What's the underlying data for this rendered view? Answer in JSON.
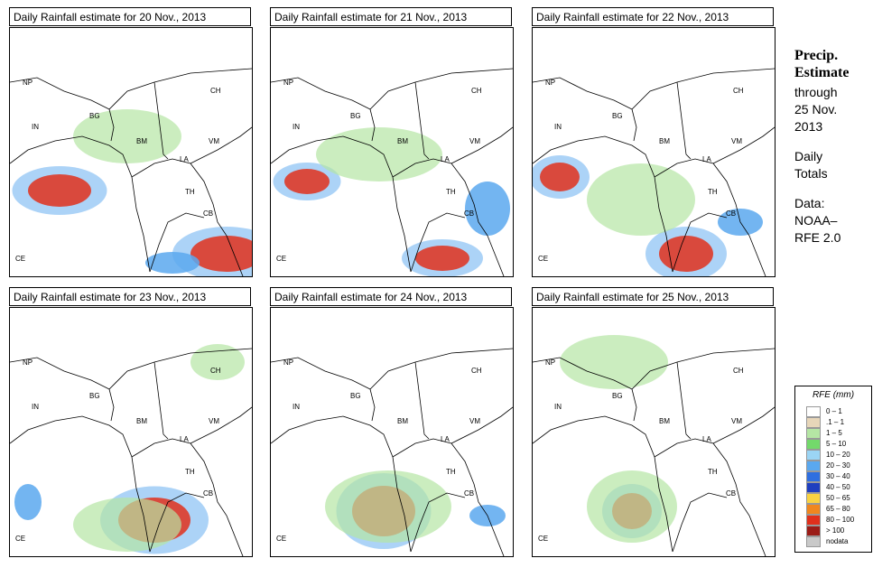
{
  "panels": [
    {
      "title": "Daily Rainfall estimate for  20 Nov., 2013",
      "rain": [
        {
          "cx": 55,
          "cy": 180,
          "rx": 35,
          "ry": 18,
          "level": "heavy"
        },
        {
          "cx": 240,
          "cy": 250,
          "rx": 40,
          "ry": 20,
          "level": "heavy"
        },
        {
          "cx": 180,
          "cy": 260,
          "rx": 30,
          "ry": 12,
          "level": "mid"
        },
        {
          "cx": 130,
          "cy": 120,
          "rx": 60,
          "ry": 30,
          "level": "light"
        }
      ]
    },
    {
      "title": "Daily Rainfall estimate for  21 Nov., 2013",
      "rain": [
        {
          "cx": 40,
          "cy": 170,
          "rx": 25,
          "ry": 14,
          "level": "heavy"
        },
        {
          "cx": 190,
          "cy": 255,
          "rx": 30,
          "ry": 14,
          "level": "heavy"
        },
        {
          "cx": 240,
          "cy": 200,
          "rx": 25,
          "ry": 30,
          "level": "mid"
        },
        {
          "cx": 120,
          "cy": 140,
          "rx": 70,
          "ry": 30,
          "level": "light"
        }
      ]
    },
    {
      "title": "Daily Rainfall estimate for  22 Nov., 2013",
      "rain": [
        {
          "cx": 30,
          "cy": 165,
          "rx": 22,
          "ry": 16,
          "level": "heavy"
        },
        {
          "cx": 170,
          "cy": 250,
          "rx": 30,
          "ry": 20,
          "level": "heavy"
        },
        {
          "cx": 230,
          "cy": 215,
          "rx": 25,
          "ry": 15,
          "level": "mid"
        },
        {
          "cx": 120,
          "cy": 190,
          "rx": 60,
          "ry": 40,
          "level": "light"
        }
      ]
    },
    {
      "title": "Daily Rainfall estimate for  23 Nov., 2013",
      "rain": [
        {
          "cx": 160,
          "cy": 235,
          "rx": 40,
          "ry": 25,
          "level": "heavy"
        },
        {
          "cx": 20,
          "cy": 215,
          "rx": 15,
          "ry": 20,
          "level": "mid"
        },
        {
          "cx": 130,
          "cy": 240,
          "rx": 60,
          "ry": 30,
          "level": "light"
        },
        {
          "cx": 230,
          "cy": 60,
          "rx": 30,
          "ry": 20,
          "level": "light"
        }
      ]
    },
    {
      "title": "Daily Rainfall estimate for  24 Nov., 2013",
      "rain": [
        {
          "cx": 125,
          "cy": 225,
          "rx": 35,
          "ry": 28,
          "level": "heavy"
        },
        {
          "cx": 240,
          "cy": 230,
          "rx": 20,
          "ry": 12,
          "level": "mid"
        },
        {
          "cx": 130,
          "cy": 220,
          "rx": 70,
          "ry": 40,
          "level": "light"
        }
      ]
    },
    {
      "title": "Daily Rainfall estimate for  25 Nov., 2013",
      "rain": [
        {
          "cx": 110,
          "cy": 225,
          "rx": 22,
          "ry": 20,
          "level": "heavy"
        },
        {
          "cx": 110,
          "cy": 220,
          "rx": 50,
          "ry": 40,
          "level": "light"
        },
        {
          "cx": 90,
          "cy": 60,
          "rx": 60,
          "ry": 30,
          "level": "light"
        }
      ]
    }
  ],
  "country_labels": [
    "NP",
    "CH",
    "IN",
    "BG",
    "BM",
    "VM",
    "LA",
    "TH",
    "CB",
    "CE"
  ],
  "sidebar": {
    "title_line1": "Precip.",
    "title_line2": "Estimate",
    "through": "through",
    "date_line1": "25 Nov.",
    "date_line2": "2013",
    "daily1": "Daily",
    "daily2": "Totals",
    "data1": "Data:",
    "data2": "NOAA–",
    "data3": "RFE 2.0"
  },
  "legend": {
    "title": "RFE (mm)",
    "items": [
      {
        "label": "0 – 1",
        "color": "#ffffff"
      },
      {
        "label": ".1 – 1",
        "color": "#e7d6b9"
      },
      {
        "label": "1 – 5",
        "color": "#b5e6a4"
      },
      {
        "label": "5 – 10",
        "color": "#73d96b"
      },
      {
        "label": "10 – 20",
        "color": "#9bd5f5"
      },
      {
        "label": "20 – 30",
        "color": "#5aa8ef"
      },
      {
        "label": "30 – 40",
        "color": "#2f6fe0"
      },
      {
        "label": "40 – 50",
        "color": "#1f3fbf"
      },
      {
        "label": "50 – 65",
        "color": "#f9d342"
      },
      {
        "label": "65 – 80",
        "color": "#f0871f"
      },
      {
        "label": "80 – 100",
        "color": "#e0301c"
      },
      {
        "label": "> 100",
        "color": "#9b1c17"
      },
      {
        "label": "nodata",
        "color": "#c9c9c9"
      }
    ]
  },
  "colors": {
    "light": "#b5e6a4",
    "mid": "#5aa8ef",
    "heavy": "#e0301c",
    "land": "#ffffff",
    "border": "#000000"
  }
}
